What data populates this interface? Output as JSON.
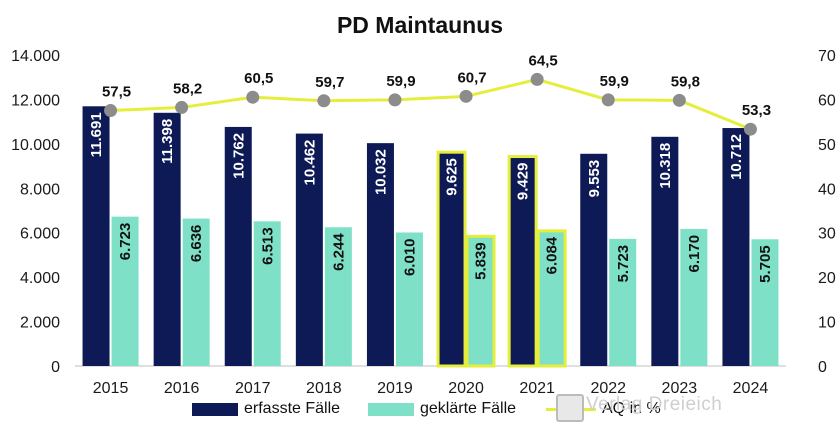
{
  "chart_data": {
    "type": "bar",
    "title": "PD Maintaunus",
    "categories": [
      "2015",
      "2016",
      "2017",
      "2018",
      "2019",
      "2020",
      "2021",
      "2022",
      "2023",
      "2024"
    ],
    "series": [
      {
        "name": "erfasste Fälle",
        "type": "bar",
        "axis": "left",
        "color": "#0d1a55",
        "values": [
          11691,
          11398,
          10762,
          10462,
          10032,
          9625,
          9429,
          9553,
          10318,
          10712
        ],
        "labels": [
          "11.691",
          "11.398",
          "10.762",
          "10.462",
          "10.032",
          "9.625",
          "9.429",
          "9.553",
          "10.318",
          "10.712"
        ]
      },
      {
        "name": "geklärte Fälle",
        "type": "bar",
        "axis": "left",
        "color": "#7fe0c8",
        "values": [
          6723,
          6636,
          6513,
          6244,
          6010,
          5839,
          6084,
          5723,
          6170,
          5705
        ],
        "labels": [
          "6.723",
          "6.636",
          "6.513",
          "6.244",
          "6.010",
          "5.839",
          "6.084",
          "5.723",
          "6.170",
          "5.705"
        ]
      },
      {
        "name": "AQ in %",
        "type": "line",
        "axis": "right",
        "color": "#e6ee3c",
        "marker_color": "#8c8c8c",
        "values": [
          57.5,
          58.2,
          60.5,
          59.7,
          59.9,
          60.7,
          64.5,
          59.9,
          59.8,
          53.3
        ],
        "labels": [
          "57,5",
          "58,2",
          "60,5",
          "59,7",
          "59,9",
          "60,7",
          "64,5",
          "59,9",
          "59,8",
          "53,3"
        ]
      }
    ],
    "highlighted_categories": [
      "2020",
      "2021"
    ],
    "highlight_color": "#e6ee3c",
    "ylim_left": [
      0,
      14000
    ],
    "yticks_left": [
      "0",
      "2.000",
      "4.000",
      "6.000",
      "8.000",
      "10.000",
      "12.000",
      "14.000"
    ],
    "ylim_right": [
      0,
      70
    ],
    "yticks_right": [
      "0",
      "10",
      "20",
      "30",
      "40",
      "50",
      "60",
      "70"
    ],
    "grid": false,
    "legend_position": "bottom"
  },
  "watermark": "Verlag Dreieich"
}
